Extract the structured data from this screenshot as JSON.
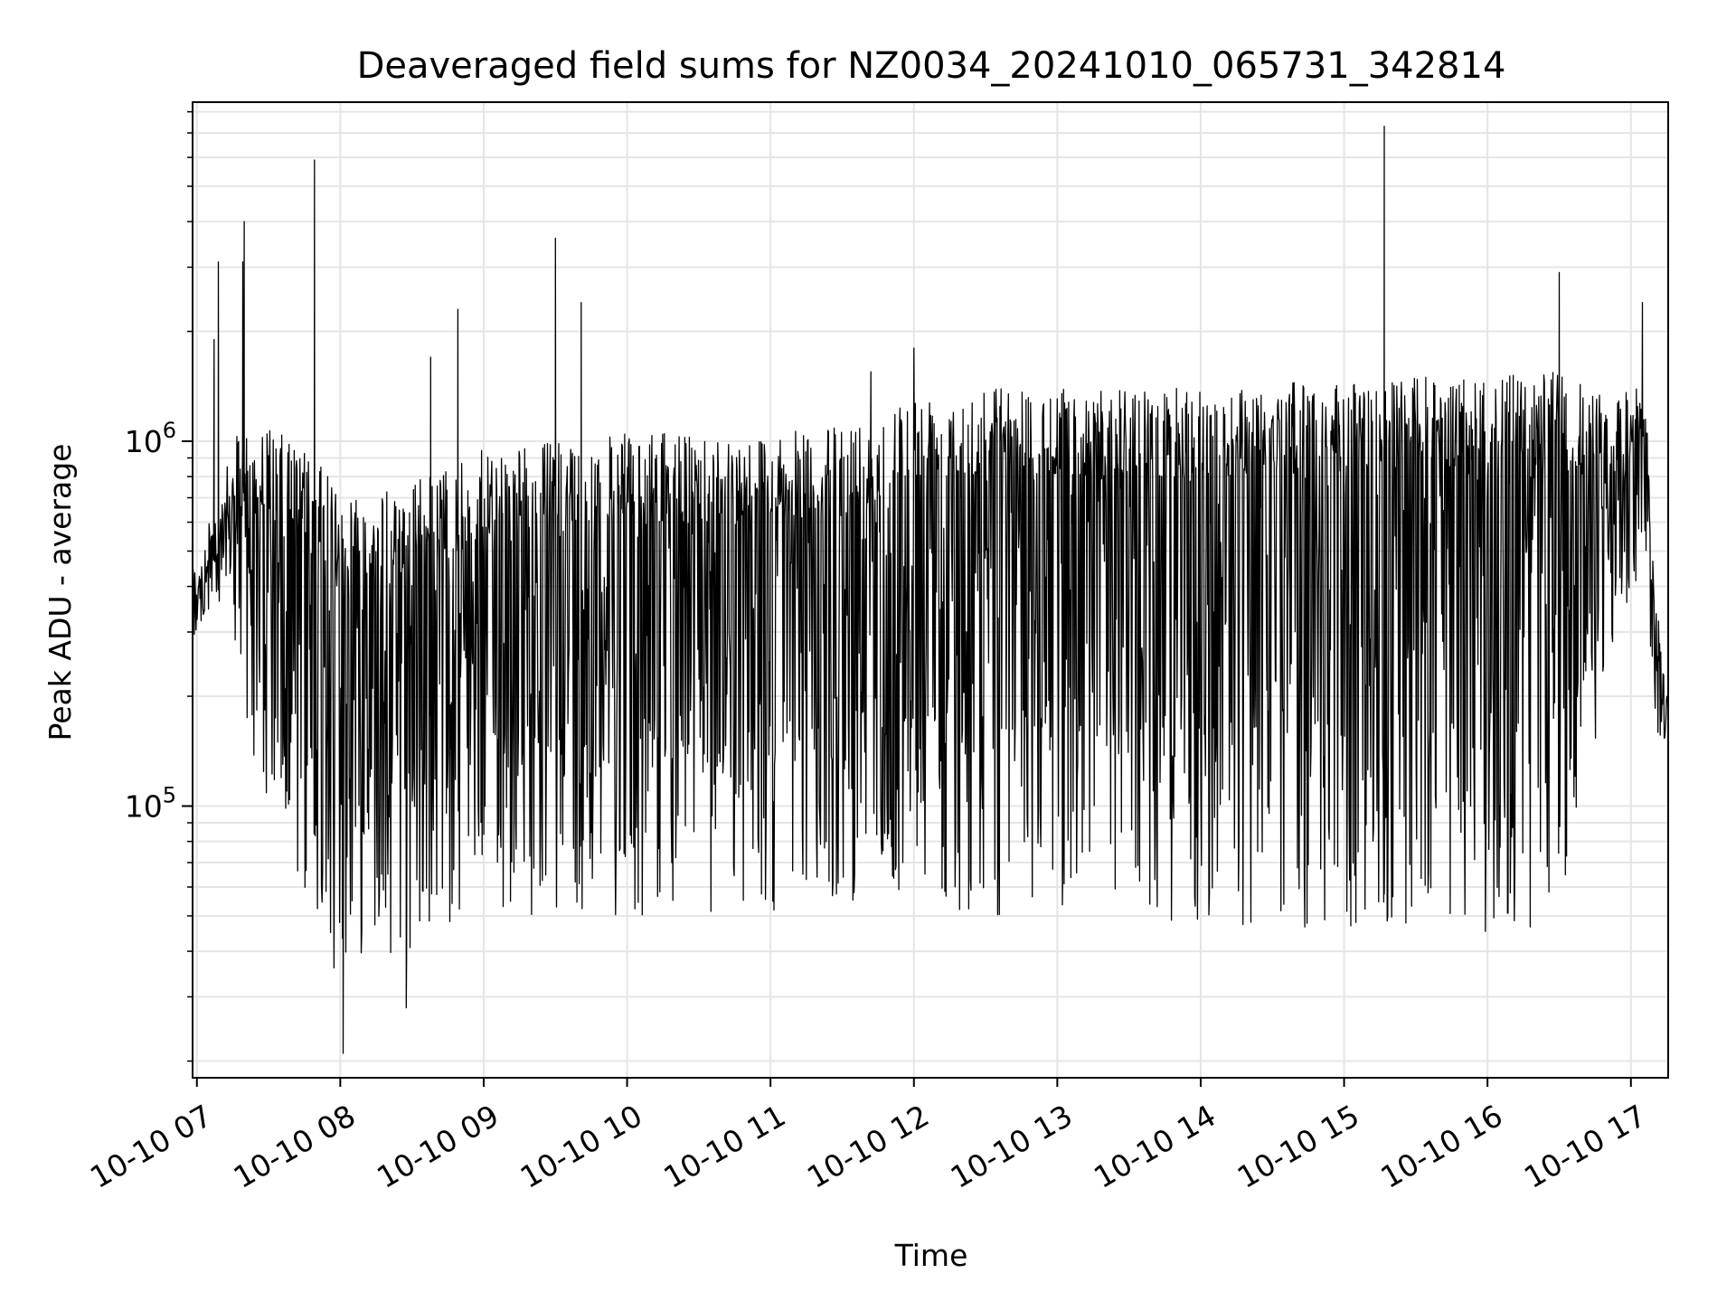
{
  "chart_data": {
    "type": "line",
    "title": "Deaveraged field sums for NZ0034_20241010_065731_342814",
    "xlabel": "Time",
    "ylabel": "Peak ADU - average",
    "yscale": "log",
    "ylim": [
      18000,
      8500000
    ],
    "xlim_hours": [
      6.97,
      17.26
    ],
    "grid": true,
    "line_color": "#000000",
    "grid_color": "#e5e5e5",
    "x_ticks": [
      {
        "hour": 7,
        "label": "10-10 07"
      },
      {
        "hour": 8,
        "label": "10-10 08"
      },
      {
        "hour": 9,
        "label": "10-10 09"
      },
      {
        "hour": 10,
        "label": "10-10 10"
      },
      {
        "hour": 11,
        "label": "10-10 11"
      },
      {
        "hour": 12,
        "label": "10-10 12"
      },
      {
        "hour": 13,
        "label": "10-10 13"
      },
      {
        "hour": 14,
        "label": "10-10 14"
      },
      {
        "hour": 15,
        "label": "10-10 15"
      },
      {
        "hour": 16,
        "label": "10-10 16"
      },
      {
        "hour": 17,
        "label": "10-10 17"
      }
    ],
    "y_ticks": [
      {
        "value": 100000,
        "base": "10",
        "exp": "5"
      },
      {
        "value": 1000000,
        "base": "10",
        "exp": "6"
      }
    ],
    "envelope": [
      {
        "t": 6.97,
        "hi": 480000,
        "lo": 280000
      },
      {
        "t": 7.1,
        "hi": 620000,
        "lo": 350000
      },
      {
        "t": 7.3,
        "hi": 1100000,
        "lo": 220000
      },
      {
        "t": 7.5,
        "hi": 1100000,
        "lo": 80000
      },
      {
        "t": 7.75,
        "hi": 950000,
        "lo": 55000
      },
      {
        "t": 8.0,
        "hi": 750000,
        "lo": 32000
      },
      {
        "t": 8.25,
        "hi": 720000,
        "lo": 45000
      },
      {
        "t": 8.5,
        "hi": 780000,
        "lo": 32000
      },
      {
        "t": 8.75,
        "hi": 850000,
        "lo": 45000
      },
      {
        "t": 9.0,
        "hi": 950000,
        "lo": 50000
      },
      {
        "t": 9.5,
        "hi": 1000000,
        "lo": 50000
      },
      {
        "t": 10.0,
        "hi": 1050000,
        "lo": 50000
      },
      {
        "t": 10.5,
        "hi": 1050000,
        "lo": 48000
      },
      {
        "t": 11.0,
        "hi": 1050000,
        "lo": 50000
      },
      {
        "t": 11.5,
        "hi": 1100000,
        "lo": 55000
      },
      {
        "t": 12.0,
        "hi": 1350000,
        "lo": 55000
      },
      {
        "t": 12.5,
        "hi": 1450000,
        "lo": 50000
      },
      {
        "t": 13.0,
        "hi": 1400000,
        "lo": 50000
      },
      {
        "t": 13.5,
        "hi": 1400000,
        "lo": 45000
      },
      {
        "t": 14.0,
        "hi": 1400000,
        "lo": 45000
      },
      {
        "t": 14.5,
        "hi": 1450000,
        "lo": 45000
      },
      {
        "t": 15.0,
        "hi": 1450000,
        "lo": 45000
      },
      {
        "t": 15.5,
        "hi": 1500000,
        "lo": 45000
      },
      {
        "t": 16.0,
        "hi": 1500000,
        "lo": 45000
      },
      {
        "t": 16.5,
        "hi": 1550000,
        "lo": 45000
      },
      {
        "t": 16.9,
        "hi": 1300000,
        "lo": 300000
      },
      {
        "t": 17.1,
        "hi": 1500000,
        "lo": 450000
      },
      {
        "t": 17.16,
        "hi": 450000,
        "lo": 160000
      },
      {
        "t": 17.26,
        "hi": 200000,
        "lo": 150000
      }
    ],
    "spikes": [
      {
        "t": 7.12,
        "value": 1900000
      },
      {
        "t": 7.15,
        "value": 3100000
      },
      {
        "t": 7.32,
        "value": 3100000
      },
      {
        "t": 7.33,
        "value": 4000000
      },
      {
        "t": 7.82,
        "value": 5900000
      },
      {
        "t": 8.02,
        "value": 21000
      },
      {
        "t": 8.46,
        "value": 28000
      },
      {
        "t": 8.63,
        "value": 1700000
      },
      {
        "t": 8.82,
        "value": 2300000
      },
      {
        "t": 9.5,
        "value": 3600000
      },
      {
        "t": 9.68,
        "value": 2400000
      },
      {
        "t": 11.7,
        "value": 1550000
      },
      {
        "t": 12.0,
        "value": 1800000
      },
      {
        "t": 15.28,
        "value": 7300000
      },
      {
        "t": 16.5,
        "value": 2900000
      },
      {
        "t": 17.08,
        "value": 2400000
      }
    ]
  }
}
